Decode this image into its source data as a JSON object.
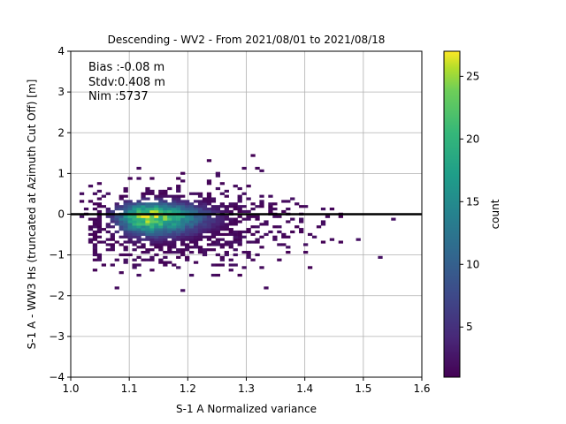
{
  "chart_data": {
    "type": "heatmap",
    "title": "Descending - WV2 - From 2021/08/01 to 2021/08/18",
    "xlabel": "S-1 A Normalized variance",
    "ylabel": "S-1 A - WW3 Hs (truncated at Azimuth Cut Off) [m]",
    "xlim": [
      1.0,
      1.6
    ],
    "ylim": [
      -4,
      4
    ],
    "xticks": [
      "1.0",
      "1.1",
      "1.2",
      "1.3",
      "1.4",
      "1.5",
      "1.6"
    ],
    "yticks": [
      "−4",
      "−3",
      "−2",
      "−1",
      "0",
      "1",
      "2",
      "3",
      "4"
    ],
    "grid": true,
    "colormap": "viridis",
    "colorbar": {
      "label": "count",
      "range": [
        1,
        27
      ],
      "ticks": [
        "5",
        "10",
        "15",
        "20",
        "25"
      ]
    },
    "stats": {
      "bias": "Bias :-0.08 m",
      "stdv": "Stdv:0.408 m",
      "nim": "Nim :5737"
    },
    "reference_line": {
      "y": 0,
      "color": "#000000"
    },
    "density": {
      "description_fields": [
        "x",
        "y",
        "count"
      ],
      "peak": {
        "x": 1.13,
        "y": -0.03,
        "count": 27
      },
      "x_range": [
        1.0,
        1.6
      ],
      "y_range": [
        -2.3,
        1.4
      ]
    }
  }
}
